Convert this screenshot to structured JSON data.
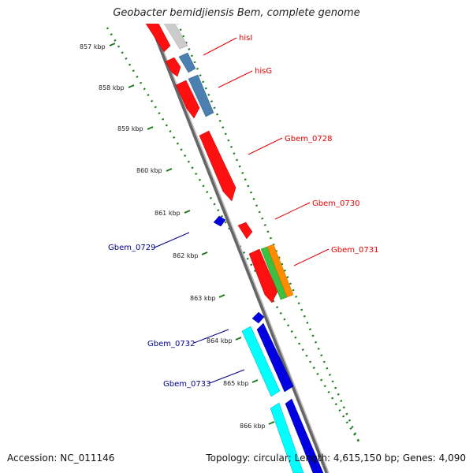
{
  "title": "Geobacter bemidjiensis Bem, complete genome",
  "footer": {
    "accession": "Accession: NC_011146",
    "topology": "Topology: circular; Length: 4,615,150 bp; Genes: 4,090"
  },
  "colors": {
    "forward_label": "#e60000",
    "reverse_label": "#00008b",
    "scale_dots": "#1e7a1e",
    "backbone": "#888888"
  },
  "ticks": [
    "857 kbp",
    "858 kbp",
    "859 kbp",
    "860 kbp",
    "861 kbp",
    "862 kbp",
    "863 kbp",
    "864 kbp",
    "865 kbp",
    "866 kbp"
  ],
  "genes": [
    {
      "name": "hisI",
      "strand": "forward"
    },
    {
      "name": "hisG",
      "strand": "forward"
    },
    {
      "name": "Gbem_0728",
      "strand": "forward"
    },
    {
      "name": "Gbem_0730",
      "strand": "forward"
    },
    {
      "name": "Gbem_0731",
      "strand": "forward"
    },
    {
      "name": "Gbem_0729",
      "strand": "reverse"
    },
    {
      "name": "Gbem_0732",
      "strand": "reverse"
    },
    {
      "name": "Gbem_0733",
      "strand": "reverse"
    }
  ]
}
